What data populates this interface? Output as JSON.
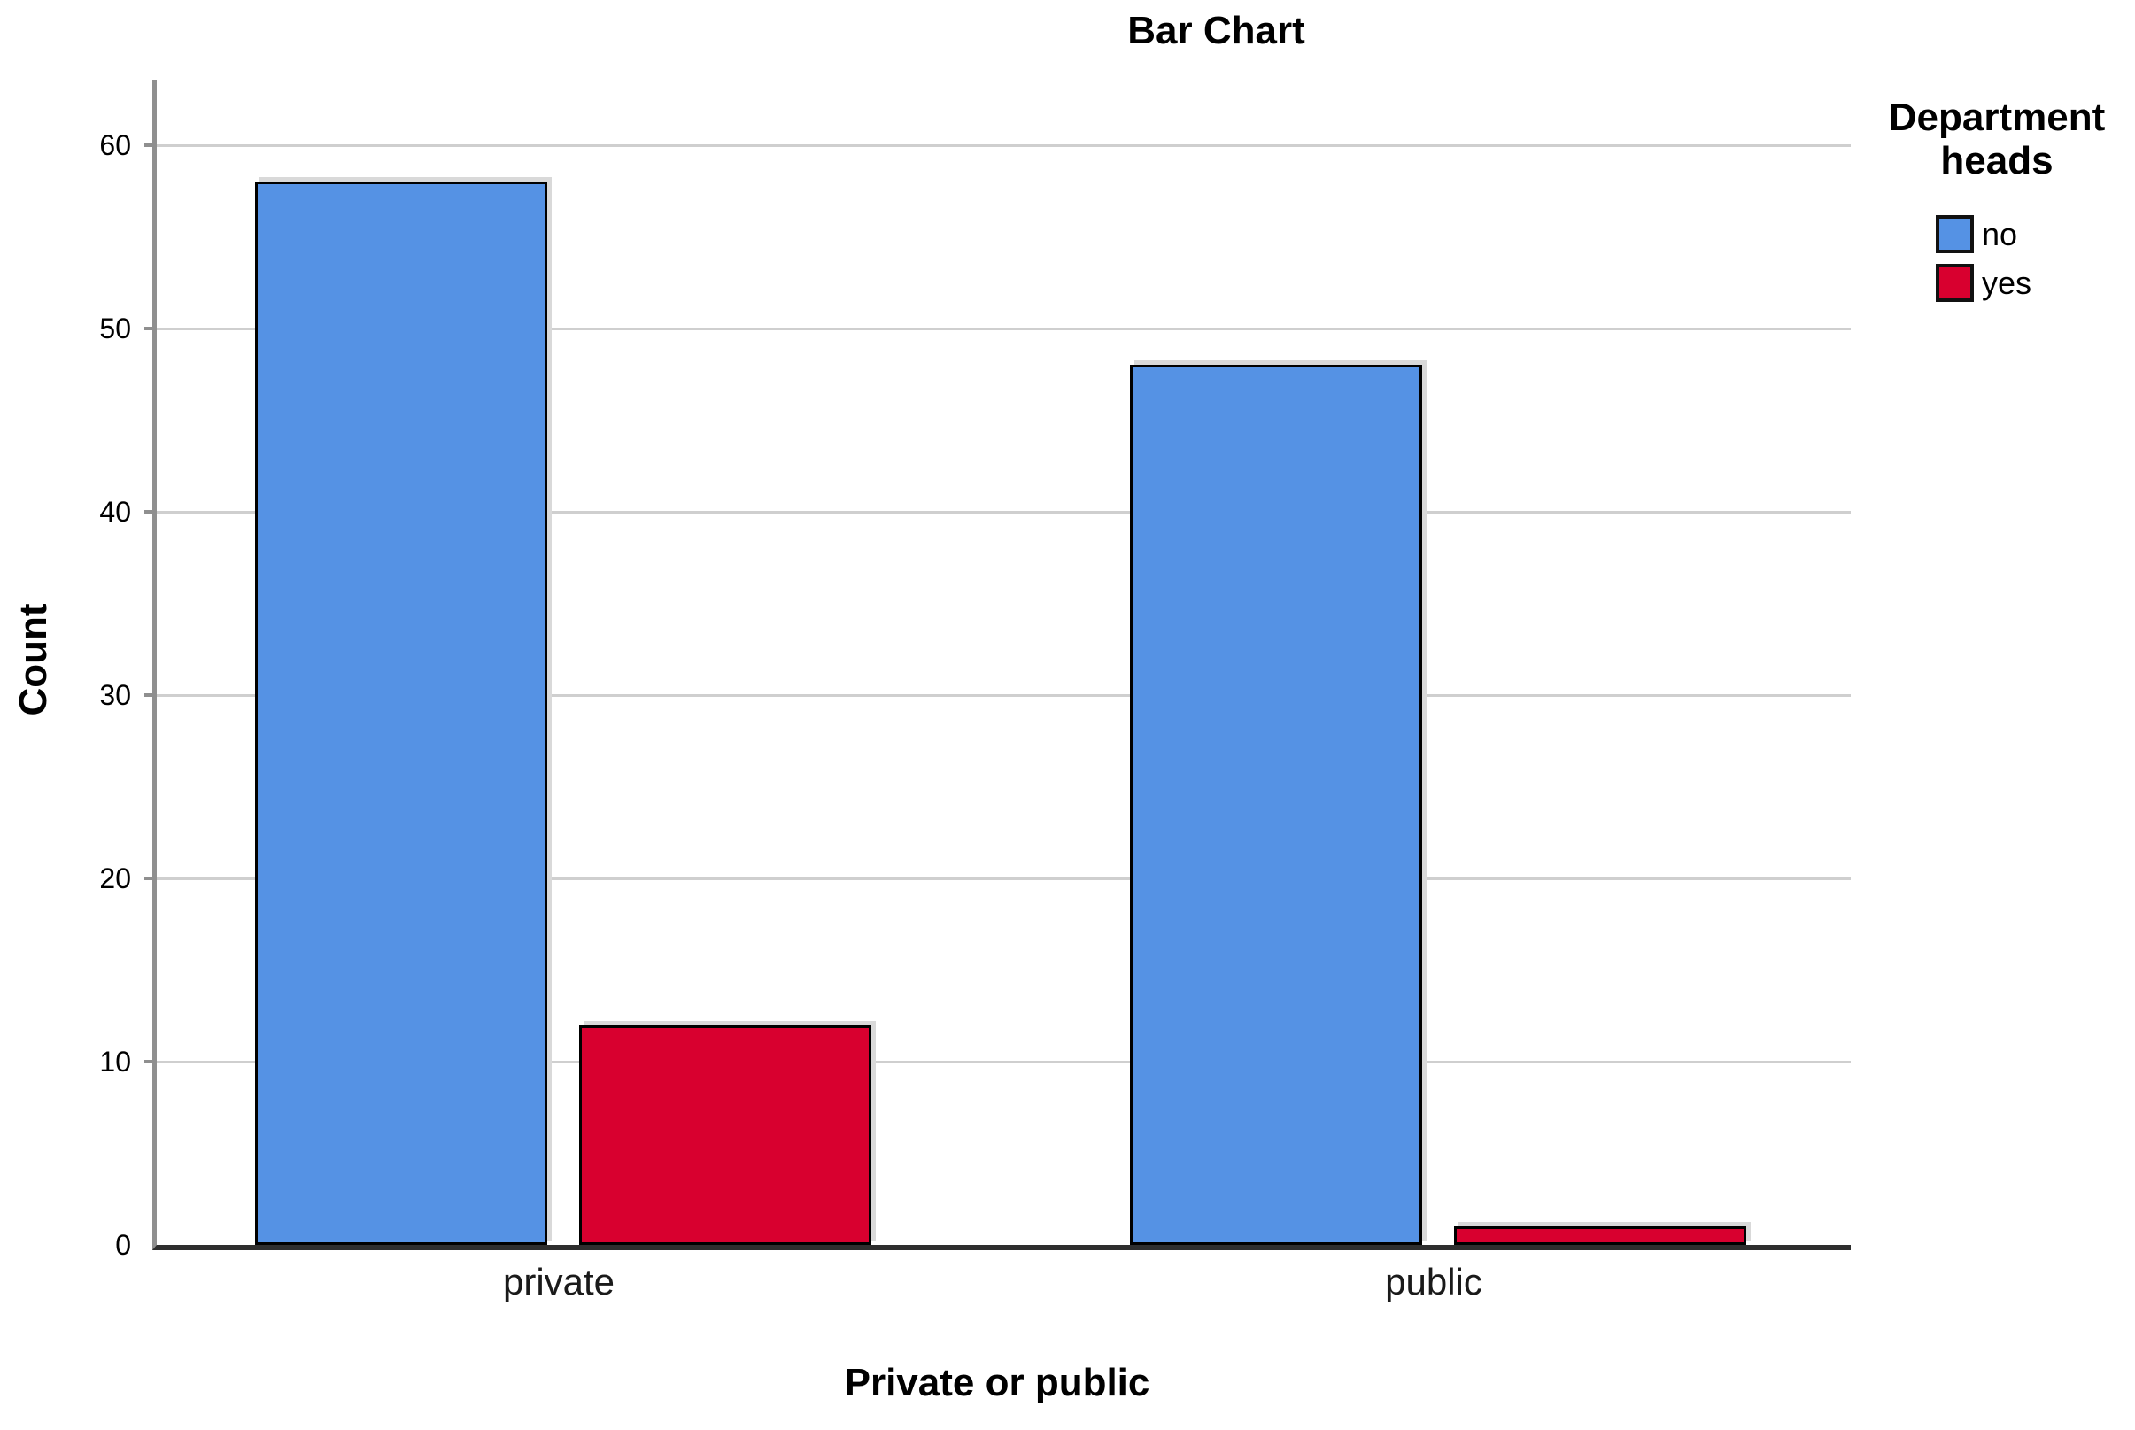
{
  "chart_data": {
    "type": "bar",
    "title": "Bar Chart",
    "xlabel": "Private or public",
    "ylabel": "Count",
    "categories": [
      "private",
      "public"
    ],
    "series": [
      {
        "name": "no",
        "color": "#5592E4",
        "values": [
          58,
          48
        ]
      },
      {
        "name": "yes",
        "color": "#D8002F",
        "values": [
          12,
          1
        ]
      }
    ],
    "legend_title": "Department heads",
    "legend_position": "right",
    "ylim": [
      0,
      63.5
    ],
    "yticks": [
      0,
      10,
      20,
      30,
      40,
      50,
      60
    ],
    "grid": "horizontal-gridlines-only",
    "bar_border_color": "#000000"
  },
  "colors": {
    "bar_no": "#5592E4",
    "bar_yes": "#D8002F",
    "gridline": "#CFCFCF",
    "y_axis": "#8F8F8F",
    "x_axis": "#2E2E2E",
    "bar_shadow": "#D9D9D9",
    "background": "#FFFFFF",
    "text": "#000000"
  }
}
